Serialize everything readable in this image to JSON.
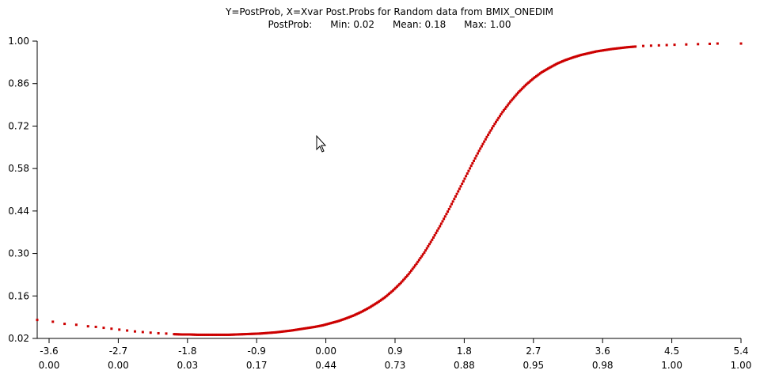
{
  "chart_data": {
    "type": "scatter",
    "title": "Y=PostProb, X=Xvar Post.Probs for Random data from BMIX_ONEDIM",
    "subtitle": {
      "label": "PostProb:",
      "min": "Min: 0.02",
      "mean": "Mean: 0.18",
      "max": "Max: 1.00"
    },
    "xlabel": "",
    "ylabel": "",
    "xlim": [
      -3.6,
      5.4
    ],
    "ylim": [
      0.02,
      1.0
    ],
    "x_ticks": [
      "-3.6",
      "-2.7",
      "-1.8",
      "-0.9",
      "0.00",
      "0.9",
      "1.8",
      "2.7",
      "3.6",
      "4.5",
      "5.4"
    ],
    "x_ticks_secondary": [
      "0.00",
      "0.00",
      "0.03",
      "0.17",
      "0.44",
      "0.73",
      "0.88",
      "0.95",
      "0.98",
      "1.00",
      "1.00"
    ],
    "y_ticks": [
      "1.00",
      "0.86",
      "0.72",
      "0.58",
      "0.44",
      "0.30",
      "0.16",
      "0.02"
    ],
    "grid": false,
    "series": [
      {
        "color": "#cc0000",
        "points": [
          [
            -3.6,
            0.081
          ],
          [
            -3.4,
            0.075
          ],
          [
            -3.25,
            0.068
          ],
          [
            -3.1,
            0.065
          ],
          [
            -2.95,
            0.06
          ],
          [
            -2.85,
            0.058
          ],
          [
            -2.75,
            0.055
          ],
          [
            -2.65,
            0.052
          ],
          [
            -2.55,
            0.049
          ],
          [
            -2.45,
            0.046
          ],
          [
            -2.35,
            0.043
          ],
          [
            -2.25,
            0.041
          ],
          [
            -2.15,
            0.039
          ],
          [
            -2.05,
            0.037
          ],
          [
            -1.95,
            0.036
          ],
          [
            -1.85,
            0.034
          ],
          [
            -1.75,
            0.033
          ],
          [
            -1.65,
            0.033
          ],
          [
            -1.55,
            0.032
          ],
          [
            -1.45,
            0.032
          ],
          [
            -1.35,
            0.032
          ],
          [
            -1.25,
            0.032
          ],
          [
            -1.15,
            0.032
          ],
          [
            -1.05,
            0.033
          ],
          [
            -0.95,
            0.034
          ],
          [
            -0.85,
            0.035
          ],
          [
            -0.75,
            0.036
          ],
          [
            -0.65,
            0.038
          ],
          [
            -0.55,
            0.04
          ],
          [
            -0.45,
            0.043
          ],
          [
            -0.35,
            0.046
          ],
          [
            -0.25,
            0.05
          ],
          [
            -0.15,
            0.054
          ],
          [
            -0.05,
            0.058
          ],
          [
            0.05,
            0.063
          ],
          [
            0.15,
            0.07
          ],
          [
            0.25,
            0.077
          ],
          [
            0.35,
            0.086
          ],
          [
            0.45,
            0.096
          ],
          [
            0.55,
            0.108
          ],
          [
            0.65,
            0.122
          ],
          [
            0.75,
            0.138
          ],
          [
            0.85,
            0.156
          ],
          [
            0.95,
            0.178
          ],
          [
            1.05,
            0.203
          ],
          [
            1.15,
            0.232
          ],
          [
            1.25,
            0.266
          ],
          [
            1.35,
            0.303
          ],
          [
            1.45,
            0.345
          ],
          [
            1.55,
            0.39
          ],
          [
            1.65,
            0.438
          ],
          [
            1.75,
            0.488
          ],
          [
            1.85,
            0.538
          ],
          [
            1.95,
            0.589
          ],
          [
            2.05,
            0.638
          ],
          [
            2.15,
            0.684
          ],
          [
            2.25,
            0.727
          ],
          [
            2.35,
            0.766
          ],
          [
            2.45,
            0.8
          ],
          [
            2.55,
            0.83
          ],
          [
            2.65,
            0.856
          ],
          [
            2.75,
            0.878
          ],
          [
            2.85,
            0.897
          ],
          [
            2.95,
            0.912
          ],
          [
            3.05,
            0.926
          ],
          [
            3.15,
            0.937
          ],
          [
            3.25,
            0.946
          ],
          [
            3.35,
            0.954
          ],
          [
            3.45,
            0.96
          ],
          [
            3.55,
            0.966
          ],
          [
            3.65,
            0.97
          ],
          [
            3.75,
            0.974
          ],
          [
            3.85,
            0.977
          ],
          [
            3.95,
            0.98
          ],
          [
            4.05,
            0.982
          ],
          [
            4.15,
            0.984
          ],
          [
            4.25,
            0.985
          ],
          [
            4.35,
            0.986
          ],
          [
            4.45,
            0.987
          ],
          [
            4.55,
            0.988
          ],
          [
            4.7,
            0.989
          ],
          [
            4.85,
            0.99
          ],
          [
            5.0,
            0.991
          ],
          [
            5.1,
            0.992
          ],
          [
            5.4,
            0.992
          ]
        ]
      }
    ]
  }
}
